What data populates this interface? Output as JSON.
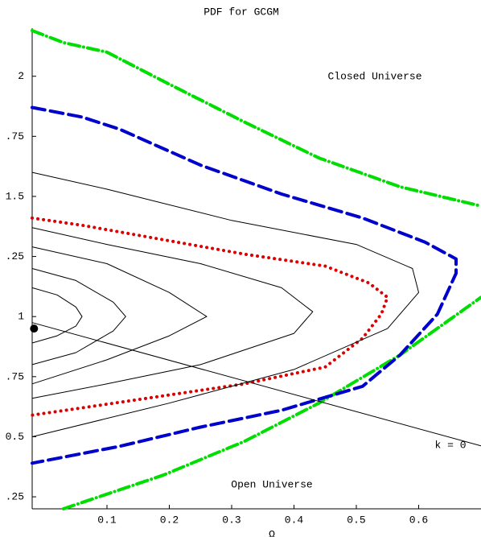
{
  "chart_data": {
    "type": "contour",
    "title": "PDF for GCGM",
    "x_label": "Ω",
    "annotations": [
      "Closed Universe",
      "Open Universe",
      "k = 0"
    ],
    "xlim": [
      -0.02,
      0.7
    ],
    "ylim": [
      0.2,
      2.2
    ],
    "xticks": [
      0.1,
      0.2,
      0.3,
      0.4,
      0.5,
      0.6
    ],
    "yticks": [
      {
        "value": 0.25,
        "label": ".25"
      },
      {
        "value": 0.5,
        "label": "0.5"
      },
      {
        "value": 0.75,
        "label": ".75"
      },
      1,
      {
        "value": 1.25,
        "label": ".25"
      },
      1.5,
      {
        "value": 1.75,
        "label": ".75"
      },
      2
    ],
    "series": [
      {
        "color": "#00dd00",
        "style": "dashdot",
        "width": 4,
        "x": [
          -0.02,
          0.03,
          0.1,
          0.19,
          0.32,
          0.44,
          0.57,
          0.7
        ],
        "y": [
          2.19,
          2.14,
          2.1,
          1.98,
          1.81,
          1.66,
          1.54,
          1.46
        ]
      },
      {
        "color": "#00dd00",
        "style": "dashdot",
        "width": 4,
        "x": [
          0.03,
          0.19,
          0.32,
          0.44,
          0.57,
          0.7
        ],
        "y": [
          0.2,
          0.34,
          0.48,
          0.64,
          0.84,
          1.08
        ]
      },
      {
        "color": "#0000cc",
        "style": "dash",
        "width": 4,
        "x": [
          -0.02,
          0.06,
          0.12,
          0.25,
          0.38,
          0.51,
          0.61,
          0.66,
          0.66,
          0.63,
          0.57,
          0.51,
          0.38,
          0.25,
          0.12,
          -0.02
        ],
        "y": [
          1.87,
          1.83,
          1.78,
          1.63,
          1.51,
          1.41,
          1.31,
          1.24,
          1.18,
          1.01,
          0.84,
          0.71,
          0.61,
          0.54,
          0.46,
          0.39
        ]
      },
      {
        "color": "#dd0000",
        "style": "dot",
        "width": 4,
        "x": [
          -0.02,
          0.06,
          0.19,
          0.32,
          0.45,
          0.52,
          0.55,
          0.54,
          0.51,
          0.45,
          0.32,
          0.19,
          0.06,
          -0.02
        ],
        "y": [
          1.41,
          1.38,
          1.32,
          1.26,
          1.21,
          1.14,
          1.08,
          1.01,
          0.91,
          0.79,
          0.72,
          0.67,
          0.62,
          0.59
        ]
      },
      {
        "color": "#000000",
        "style": "solid",
        "width": 1,
        "x": [
          -0.02,
          0.7
        ],
        "y": [
          0.975,
          0.462
        ]
      },
      {
        "color": "#000000",
        "style": "solid",
        "width": 1,
        "x": [
          -0.02,
          0.02,
          0.05,
          0.06,
          0.05,
          0.02,
          -0.02
        ],
        "y": [
          1.12,
          1.09,
          1.04,
          1.0,
          0.96,
          0.92,
          0.89
        ]
      },
      {
        "color": "#000000",
        "style": "solid",
        "width": 1,
        "x": [
          -0.02,
          0.05,
          0.11,
          0.13,
          0.11,
          0.05,
          -0.02
        ],
        "y": [
          1.2,
          1.15,
          1.06,
          1.0,
          0.94,
          0.85,
          0.8
        ]
      },
      {
        "color": "#000000",
        "style": "solid",
        "width": 1,
        "x": [
          -0.02,
          0.1,
          0.2,
          0.26,
          0.2,
          0.1,
          -0.02
        ],
        "y": [
          1.29,
          1.22,
          1.1,
          1.0,
          0.92,
          0.82,
          0.72
        ]
      },
      {
        "color": "#000000",
        "style": "solid",
        "width": 1,
        "x": [
          -0.02,
          0.1,
          0.25,
          0.38,
          0.43,
          0.4,
          0.25,
          0.1,
          -0.02
        ],
        "y": [
          1.37,
          1.3,
          1.22,
          1.12,
          1.02,
          0.93,
          0.8,
          0.72,
          0.66
        ]
      },
      {
        "color": "#000000",
        "style": "solid",
        "width": 1,
        "x": [
          -0.02,
          0.1,
          0.3,
          0.5,
          0.59,
          0.6,
          0.55,
          0.4,
          0.2,
          -0.02
        ],
        "y": [
          1.6,
          1.53,
          1.4,
          1.3,
          1.2,
          1.1,
          0.95,
          0.78,
          0.64,
          0.5
        ]
      }
    ],
    "marker": {
      "x": -0.017,
      "y": 0.95,
      "color": "#000000"
    }
  }
}
